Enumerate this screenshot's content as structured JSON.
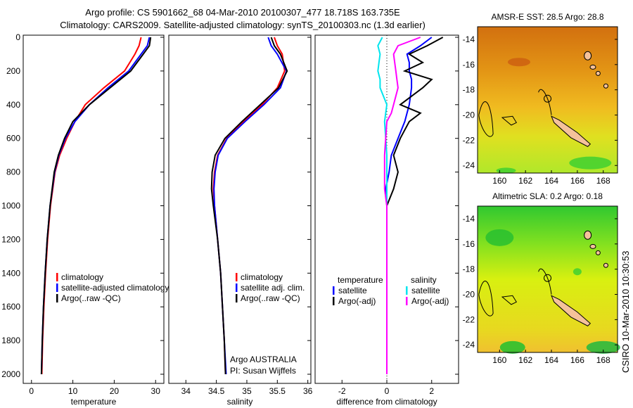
{
  "title_line1": "Argo profile: CS 5901662_68 04-Mar-2010 20100307_477 18.718S 163.735E",
  "title_line2": "Climatology: CARS2009. Satellite-adjusted climatology: synTS_20100303.nc (1.3d earlier)",
  "footer_text": [
    "Argo AUSTRALIA",
    "PI: Susan Wijffels"
  ],
  "side_stamp": "CSIRO 10-Mar-2010 10:30:53",
  "colors": {
    "clim": "#ff0000",
    "sat": "#0000ff",
    "argo": "#000000",
    "sal_sat": "#00e5ee",
    "sal_argo": "#ff00ff"
  },
  "chart_data": [
    {
      "type": "line",
      "xlabel": "temperature",
      "ylabel": "",
      "xlim": [
        -2,
        32
      ],
      "ylim": [
        2050,
        0
      ],
      "xticks": [
        "0",
        "10",
        "20",
        "30"
      ],
      "yticks": [
        "0",
        "200",
        "400",
        "600",
        "800",
        "1000",
        "1200",
        "1400",
        "1600",
        "1800",
        "2000"
      ],
      "depth": [
        0,
        50,
        100,
        200,
        300,
        400,
        500,
        600,
        700,
        800,
        1000,
        1200,
        1400,
        1600,
        1800,
        2000
      ],
      "legend": [
        "climatology",
        "satellite-adjusted climatology",
        "Argo(..raw -QC)"
      ],
      "series": [
        {
          "name": "climatology",
          "color": "#ff0000",
          "values": [
            26.5,
            26,
            25,
            22.5,
            17.5,
            13,
            10.5,
            8.5,
            6.8,
            5.7,
            4.6,
            3.9,
            3.4,
            3.0,
            2.7,
            2.5
          ]
        },
        {
          "name": "satellite-adjusted climatology",
          "color": "#0000ff",
          "values": [
            28.5,
            28,
            26.5,
            23.5,
            18.5,
            14,
            10.5,
            8.2,
            6.6,
            5.6,
            4.5,
            3.8,
            3.3,
            2.9,
            2.6,
            2.4
          ]
        },
        {
          "name": "Argo(..raw -QC)",
          "color": "#000000",
          "values": [
            28.8,
            28.5,
            27,
            24,
            19,
            14,
            10,
            8,
            6.5,
            5.5,
            4.5,
            3.8,
            3.3,
            2.9,
            2.6,
            2.4
          ]
        }
      ]
    },
    {
      "type": "line",
      "xlabel": "salinity",
      "xlim": [
        33.72,
        36.05
      ],
      "ylim": [
        2050,
        0
      ],
      "xticks": [
        "34",
        "34.5",
        "35",
        "35.5",
        "36"
      ],
      "depth": [
        0,
        50,
        100,
        200,
        300,
        400,
        500,
        600,
        700,
        800,
        900,
        1000,
        1200,
        1400,
        1600,
        1800,
        2000
      ],
      "legend": [
        "climatology",
        "satellite adj. clim.",
        "Argo(..raw -QC)"
      ],
      "series": [
        {
          "name": "climatology",
          "color": "#ff0000",
          "values": [
            35.45,
            35.5,
            35.58,
            35.62,
            35.5,
            35.25,
            34.95,
            34.67,
            34.52,
            34.47,
            34.45,
            34.47,
            34.52,
            34.57,
            34.6,
            34.63,
            34.65
          ]
        },
        {
          "name": "satellite adj. clim.",
          "color": "#0000ff",
          "values": [
            35.35,
            35.4,
            35.5,
            35.65,
            35.55,
            35.28,
            34.97,
            34.68,
            34.53,
            34.48,
            34.46,
            34.47,
            34.52,
            34.57,
            34.6,
            34.63,
            34.66
          ]
        },
        {
          "name": "Argo(..raw -QC)",
          "color": "#000000",
          "values": [
            35.4,
            35.45,
            35.55,
            35.66,
            35.52,
            35.22,
            34.92,
            34.64,
            34.48,
            34.43,
            34.42,
            34.45,
            34.52,
            34.57,
            34.6,
            34.63,
            34.65
          ]
        }
      ]
    },
    {
      "type": "line",
      "xlabel": "difference from climatology",
      "xlim": [
        -3.2,
        3.2
      ],
      "ylim": [
        2050,
        0
      ],
      "xticks": [
        "-2",
        "0",
        "2"
      ],
      "depth": [
        0,
        50,
        100,
        150,
        200,
        250,
        300,
        400,
        450,
        500,
        600,
        700,
        800,
        900,
        1000,
        2000
      ],
      "legend_headers": [
        "temperature",
        "salinity"
      ],
      "legend": [
        "satellite",
        "Argo(-adj)",
        "satellite",
        "Argo(-adj)"
      ],
      "series": [
        {
          "name": "temperature satellite",
          "color": "#0000ff",
          "values": [
            2,
            1.5,
            0.9,
            1,
            1,
            1.1,
            1.1,
            1,
            0.9,
            0.8,
            0.5,
            0.2,
            0.1,
            -0.05,
            0,
            0
          ]
        },
        {
          "name": "temperature Argo(-adj)",
          "color": "#000000",
          "values": [
            2.5,
            1.8,
            1,
            1.6,
            0.8,
            2,
            1.6,
            0.6,
            1.5,
            1,
            0.6,
            0.3,
            0.5,
            0.3,
            0,
            0
          ]
        },
        {
          "name": "salinity satellite",
          "color": "#00e5ee",
          "values": [
            -0.2,
            -0.4,
            -0.3,
            -0.35,
            -0.4,
            -0.3,
            -0.3,
            0,
            -0.05,
            -0.1,
            -0.05,
            0,
            0,
            0,
            0,
            0
          ]
        },
        {
          "name": "salinity Argo(-adj)",
          "color": "#ff00ff",
          "values": [
            1.5,
            0.5,
            0.3,
            0.35,
            0.4,
            0.45,
            0.5,
            0.3,
            0.2,
            0,
            -0.05,
            -0.1,
            -0.1,
            -0.1,
            0,
            0
          ]
        }
      ]
    },
    {
      "type": "heatmap",
      "title": "AMSR-E SST: 28.5 Argo: 28.8",
      "xlim": [
        158.3,
        169.1
      ],
      "ylim": [
        -13,
        -24.6
      ],
      "xticks": [
        "160",
        "162",
        "164",
        "166",
        "168"
      ],
      "yticks": [
        "-14",
        "-16",
        "-18",
        "-20",
        "-22",
        "-24"
      ]
    },
    {
      "type": "heatmap",
      "title": "Altimetric SLA: 0.2 Argo: 0.18",
      "xlim": [
        158.3,
        169.1
      ],
      "ylim": [
        -13,
        -24.6
      ],
      "xticks": [
        "160",
        "162",
        "164",
        "166",
        "168"
      ],
      "yticks": [
        "-14",
        "-16",
        "-18",
        "-20",
        "-22",
        "-24"
      ]
    }
  ]
}
